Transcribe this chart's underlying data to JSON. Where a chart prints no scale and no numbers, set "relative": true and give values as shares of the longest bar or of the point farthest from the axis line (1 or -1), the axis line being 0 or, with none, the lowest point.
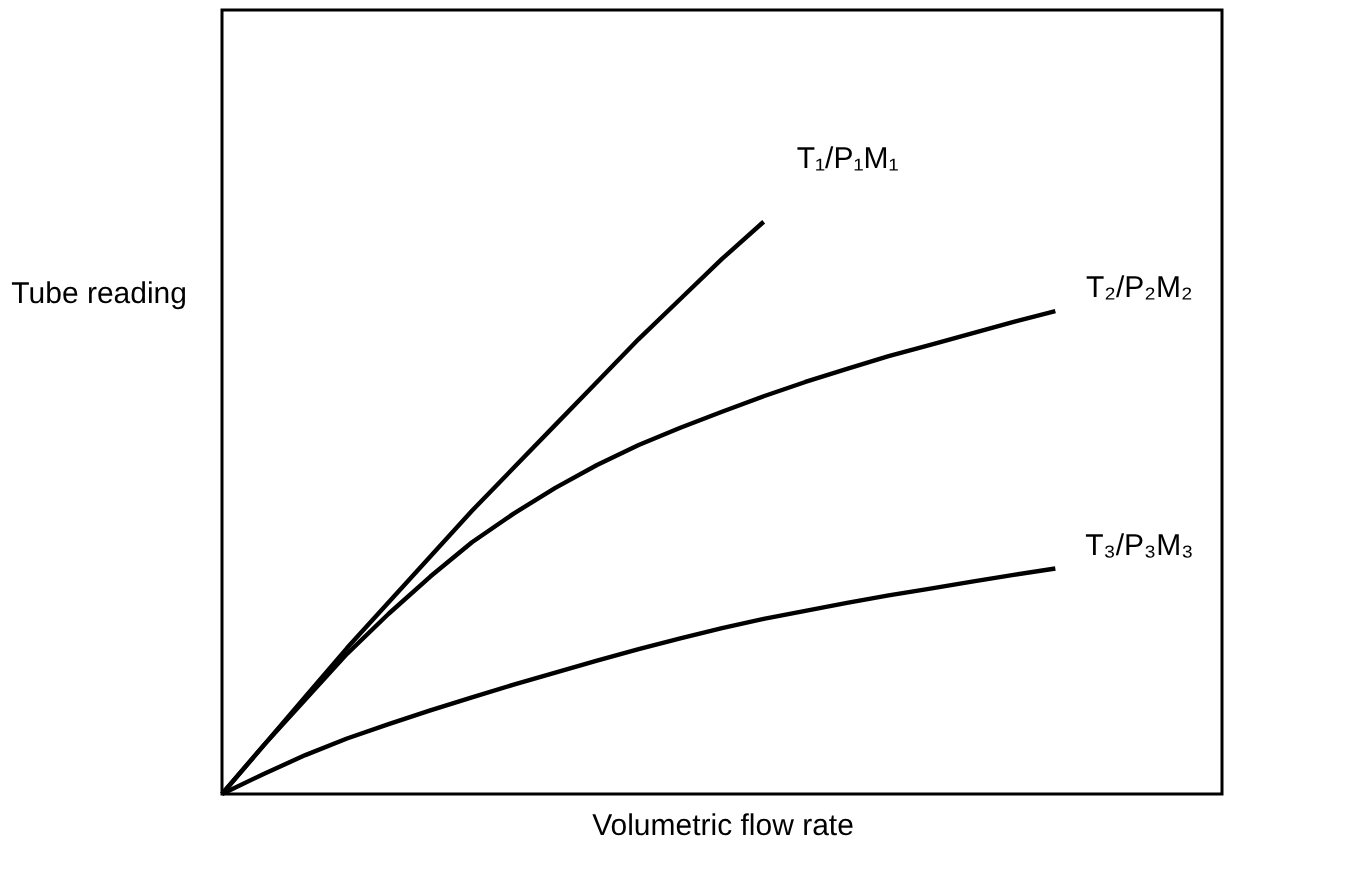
{
  "chart_data": {
    "type": "line",
    "relative": true,
    "xlabel": "Volumetric flow rate",
    "ylabel": "Tube reading",
    "tick_labels": false,
    "grid": false,
    "legend": false,
    "marker": "none",
    "line_style": "solid",
    "categories": [
      null,
      null,
      null,
      null,
      null,
      null,
      null,
      null,
      null,
      null,
      null,
      null,
      null,
      null,
      null,
      null,
      null,
      null,
      null,
      null,
      null,
      null,
      null,
      null,
      null
    ],
    "series": [
      {
        "name": "T₁/P₁M₁",
        "color": "#000000",
        "values": [
          0,
          0.085,
          0.17,
          0.255,
          0.335,
          0.415,
          0.495,
          0.57,
          0.645,
          0.72,
          0.795,
          0.865,
          0.935,
          1,
          null,
          null,
          null,
          null,
          null,
          null,
          null,
          null,
          null,
          null,
          null
        ]
      },
      {
        "name": "T₂/P₂M₂",
        "color": "#000000",
        "values": [
          0,
          0.085,
          0.165,
          0.245,
          0.315,
          0.38,
          0.44,
          0.49,
          0.535,
          0.575,
          0.61,
          0.64,
          0.668,
          0.695,
          0.72,
          0.743,
          0.765,
          0.785,
          0.805,
          0.825,
          0.844,
          null,
          null,
          null,
          null
        ]
      },
      {
        "name": "T₃/P₃M₃",
        "color": "#000000",
        "values": [
          0,
          0.035,
          0.068,
          0.097,
          0.122,
          0.146,
          0.169,
          0.191,
          0.212,
          0.233,
          0.253,
          0.272,
          0.29,
          0.306,
          0.32,
          0.334,
          0.347,
          0.359,
          0.371,
          0.383,
          0.394,
          null,
          null,
          null,
          null
        ]
      }
    ]
  }
}
